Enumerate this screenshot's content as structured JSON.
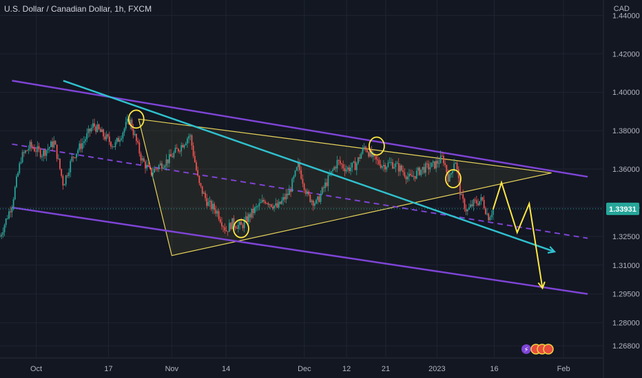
{
  "chart_data": {
    "type": "candlestick",
    "title": "U.S. Dollar / Canadian Dollar, 1h, FXCM",
    "currency": "CAD",
    "ylim": [
      1.262,
      1.448
    ],
    "y_ticks": [
      "1.44000",
      "1.42000",
      "1.40000",
      "1.38000",
      "1.36000",
      "1.34000",
      "1.32500",
      "1.31000",
      "1.29500",
      "1.28000",
      "1.26800"
    ],
    "y_tick_values": [
      1.44,
      1.42,
      1.4,
      1.38,
      1.36,
      1.34,
      1.325,
      1.31,
      1.295,
      1.28,
      1.268
    ],
    "x_ticks": [
      "Oct",
      "17",
      "Nov",
      "14",
      "Dec",
      "12",
      "21",
      "2023",
      "16",
      "Feb"
    ],
    "x_tick_positions": [
      0.06,
      0.18,
      0.285,
      0.375,
      0.505,
      0.575,
      0.64,
      0.725,
      0.82,
      0.935
    ],
    "last_price": "1.33931",
    "last_price_value": 1.3393,
    "price_path": [
      [
        0.0,
        1.325
      ],
      [
        0.02,
        1.342
      ],
      [
        0.035,
        1.366
      ],
      [
        0.05,
        1.372
      ],
      [
        0.07,
        1.368
      ],
      [
        0.09,
        1.374
      ],
      [
        0.105,
        1.352
      ],
      [
        0.12,
        1.366
      ],
      [
        0.14,
        1.375
      ],
      [
        0.155,
        1.383
      ],
      [
        0.17,
        1.378
      ],
      [
        0.19,
        1.372
      ],
      [
        0.215,
        1.386
      ],
      [
        0.235,
        1.365
      ],
      [
        0.25,
        1.358
      ],
      [
        0.265,
        1.362
      ],
      [
        0.28,
        1.365
      ],
      [
        0.3,
        1.372
      ],
      [
        0.315,
        1.378
      ],
      [
        0.33,
        1.352
      ],
      [
        0.345,
        1.342
      ],
      [
        0.36,
        1.338
      ],
      [
        0.375,
        1.328
      ],
      [
        0.385,
        1.332
      ],
      [
        0.4,
        1.33
      ],
      [
        0.42,
        1.338
      ],
      [
        0.44,
        1.344
      ],
      [
        0.46,
        1.34
      ],
      [
        0.48,
        1.348
      ],
      [
        0.495,
        1.362
      ],
      [
        0.51,
        1.346
      ],
      [
        0.525,
        1.342
      ],
      [
        0.54,
        1.352
      ],
      [
        0.56,
        1.364
      ],
      [
        0.575,
        1.36
      ],
      [
        0.59,
        1.362
      ],
      [
        0.605,
        1.372
      ],
      [
        0.62,
        1.365
      ],
      [
        0.635,
        1.362
      ],
      [
        0.65,
        1.363
      ],
      [
        0.665,
        1.36
      ],
      [
        0.68,
        1.355
      ],
      [
        0.7,
        1.36
      ],
      [
        0.72,
        1.362
      ],
      [
        0.735,
        1.366
      ],
      [
        0.745,
        1.354
      ],
      [
        0.755,
        1.366
      ],
      [
        0.765,
        1.345
      ],
      [
        0.775,
        1.338
      ],
      [
        0.785,
        1.342
      ],
      [
        0.8,
        1.344
      ],
      [
        0.81,
        1.335
      ],
      [
        0.818,
        1.339
      ]
    ],
    "projection_path": [
      [
        0.818,
        1.339
      ],
      [
        0.832,
        1.353
      ],
      [
        0.858,
        1.327
      ],
      [
        0.878,
        1.342
      ],
      [
        0.9,
        1.298
      ]
    ],
    "annotations": {
      "upper_channel": [
        [
          0.02,
          1.406
        ],
        [
          0.975,
          1.356
        ]
      ],
      "lower_channel": [
        [
          0.02,
          1.34
        ],
        [
          0.975,
          1.295
        ]
      ],
      "mid_channel_dashed": [
        [
          0.02,
          1.373
        ],
        [
          0.975,
          1.324
        ]
      ],
      "cyan_trendline": [
        [
          0.105,
          1.406
        ],
        [
          0.92,
          1.317
        ]
      ],
      "triangle": [
        [
          0.23,
          1.386
        ],
        [
          0.285,
          1.315
        ],
        [
          0.915,
          1.358
        ]
      ],
      "circles": [
        [
          0.226,
          1.386
        ],
        [
          0.4,
          1.329
        ],
        [
          0.625,
          1.372
        ],
        [
          0.752,
          1.355
        ]
      ]
    }
  }
}
